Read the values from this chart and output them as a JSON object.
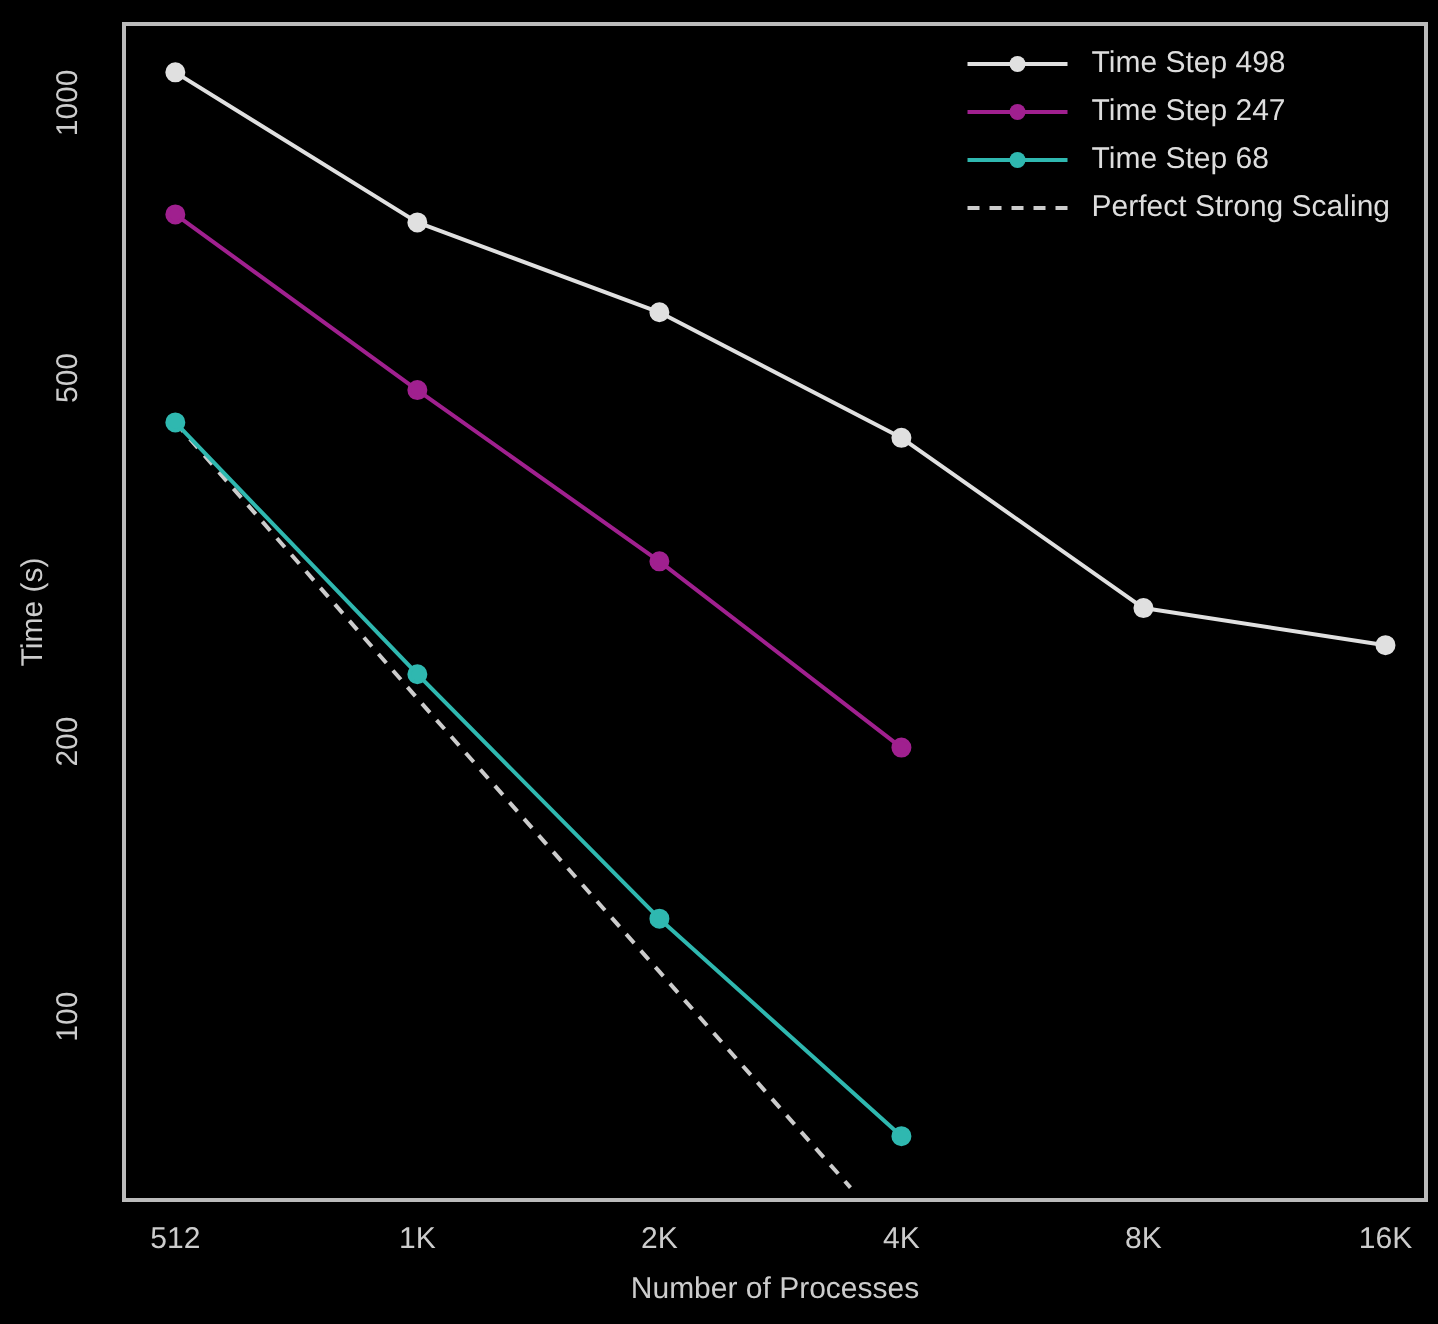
{
  "chart_data": {
    "type": "line",
    "xlabel": "Number of Processes",
    "ylabel": "Time (s)",
    "log": "xy",
    "xlim": [
      442,
      18400
    ],
    "ylim": [
      63,
      1220
    ],
    "xticks": [
      512,
      {
        "value": 1024,
        "label": "1K"
      },
      {
        "value": 2048,
        "label": "2K"
      },
      {
        "value": 4096,
        "label": "4K"
      },
      {
        "value": 8192,
        "label": "8K"
      },
      {
        "value": 16384,
        "label": "16K"
      }
    ],
    "yticks": [
      100,
      200,
      500,
      1000
    ],
    "grid": false,
    "legend": "top right",
    "marker": "circle",
    "series": [
      {
        "name": "Time Step 498",
        "color": "#e0e0e0",
        "x": [
          512,
          1024,
          2048,
          4096,
          8192,
          16384
        ],
        "values": [
          1080,
          740,
          590,
          430,
          280,
          255
        ]
      },
      {
        "name": "Time Step 247",
        "color": "#a0208f",
        "x": [
          512,
          1024,
          2048,
          4096
        ],
        "values": [
          755,
          485,
          315,
          197
        ]
      },
      {
        "name": "Time Step 68",
        "color": "#2fb8b0",
        "x": [
          512,
          1024,
          2048,
          4096
        ],
        "values": [
          447,
          237,
          128,
          74
        ]
      },
      {
        "name": "Perfect Strong Scaling",
        "color": "#cccccc",
        "marker": "none",
        "line_style": "dashed",
        "x": [
          512,
          1024,
          2048,
          3540
        ],
        "values": [
          447,
          223,
          112,
          65
        ]
      }
    ]
  }
}
